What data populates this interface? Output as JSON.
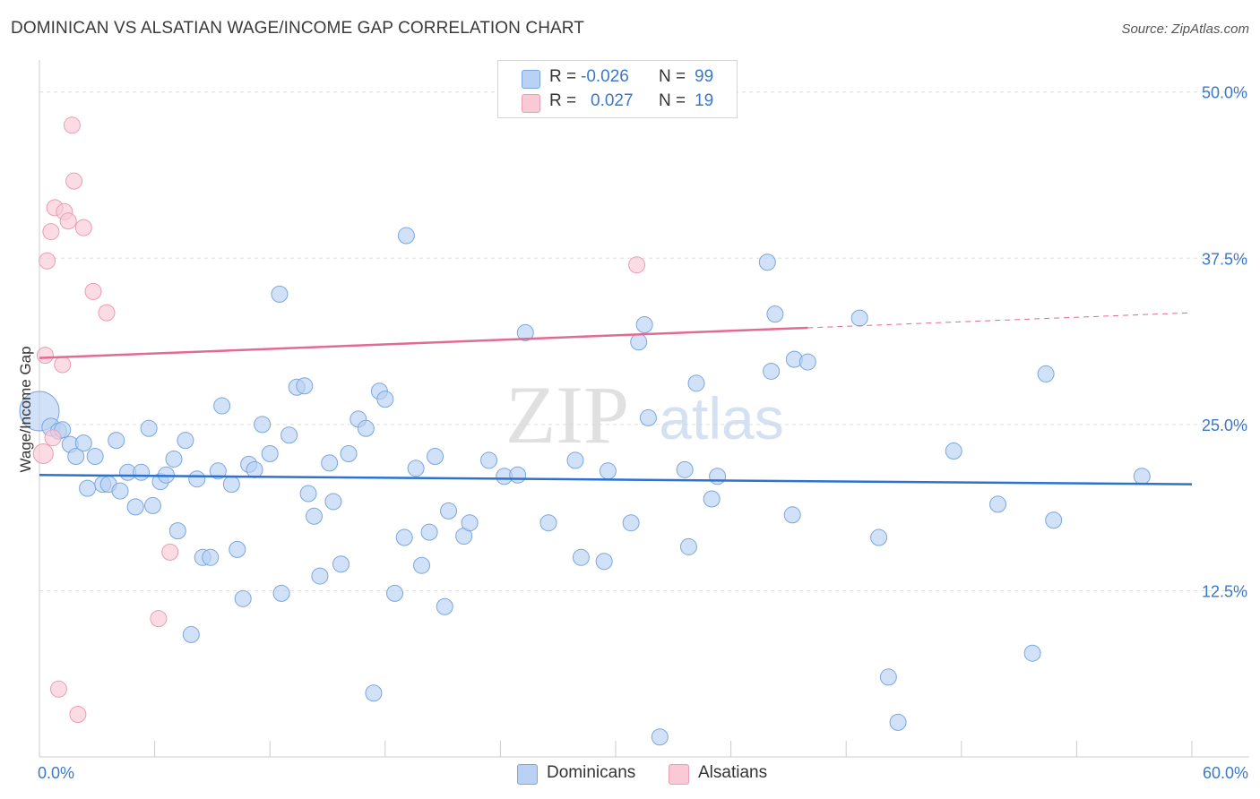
{
  "header": {
    "title": "DOMINICAN VS ALSATIAN WAGE/INCOME GAP CORRELATION CHART",
    "source": "Source: ZipAtlas.com"
  },
  "legend": {
    "rows": [
      {
        "r_label": "R =",
        "r_value": "-0.026",
        "n_label": "N =",
        "n_value": "99"
      },
      {
        "r_label": "R =",
        "r_value": "0.027",
        "n_label": "N =",
        "n_value": "19"
      }
    ],
    "series_names": [
      "Dominicans",
      "Alsatians"
    ]
  },
  "watermark": {
    "zip": "ZIP",
    "atlas": "atlas"
  },
  "colors": {
    "dominicans_fill": "#b9d1f3",
    "dominicans_stroke": "#7aa7e0",
    "dominicans_line": "#2d72d2",
    "alsatians_fill": "#f9c9d6",
    "alsatians_stroke": "#ec9cb4",
    "alsatians_line": "#e36a92",
    "tick_text": "#3b78c9",
    "grid": "#dddddd"
  },
  "chart_data": {
    "type": "scatter",
    "title": "DOMINICAN VS ALSATIAN WAGE/INCOME GAP CORRELATION CHART",
    "xlabel": "",
    "ylabel": "Wage/Income Gap",
    "xlim": [
      0,
      60
    ],
    "ylim": [
      0,
      52
    ],
    "x_tick_labels": [
      "0.0%",
      "60.0%"
    ],
    "y_ticks": [
      12.5,
      25.0,
      37.5,
      50.0
    ],
    "y_tick_labels": [
      "12.5%",
      "25.0%",
      "37.5%",
      "50.0%"
    ],
    "series": [
      {
        "name": "Dominicans",
        "r": -0.026,
        "n": 99,
        "trend": {
          "x": [
            0,
            60
          ],
          "y": [
            21.2,
            20.5
          ],
          "dashed_from": null
        },
        "points": [
          [
            0.0,
            26.0,
            22
          ],
          [
            0.6,
            24.8,
            10
          ],
          [
            1.0,
            24.5,
            9
          ],
          [
            1.2,
            24.6,
            9
          ],
          [
            1.6,
            23.5,
            9
          ],
          [
            1.9,
            22.6,
            9
          ],
          [
            2.3,
            23.6,
            9
          ],
          [
            2.5,
            20.2,
            9
          ],
          [
            2.9,
            22.6,
            9
          ],
          [
            3.3,
            20.5,
            9
          ],
          [
            3.6,
            20.5,
            9
          ],
          [
            4.0,
            23.8,
            9
          ],
          [
            4.2,
            20.0,
            9
          ],
          [
            4.6,
            21.4,
            9
          ],
          [
            5.0,
            18.8,
            9
          ],
          [
            5.3,
            21.4,
            9
          ],
          [
            5.7,
            24.7,
            9
          ],
          [
            5.9,
            18.9,
            9
          ],
          [
            6.3,
            20.7,
            9
          ],
          [
            6.6,
            21.2,
            9
          ],
          [
            7.0,
            22.4,
            9
          ],
          [
            7.2,
            17.0,
            9
          ],
          [
            7.6,
            23.8,
            9
          ],
          [
            7.9,
            9.2,
            9
          ],
          [
            8.2,
            20.9,
            9
          ],
          [
            8.5,
            15.0,
            9
          ],
          [
            8.9,
            15.0,
            9
          ],
          [
            9.3,
            21.5,
            9
          ],
          [
            9.5,
            26.4,
            9
          ],
          [
            10.0,
            20.5,
            9
          ],
          [
            10.3,
            15.6,
            9
          ],
          [
            10.6,
            11.9,
            9
          ],
          [
            10.9,
            22.0,
            9
          ],
          [
            11.2,
            21.6,
            9
          ],
          [
            11.6,
            25.0,
            9
          ],
          [
            12.0,
            22.8,
            9
          ],
          [
            12.5,
            34.8,
            9
          ],
          [
            12.6,
            12.3,
            9
          ],
          [
            13.0,
            24.2,
            9
          ],
          [
            13.4,
            27.8,
            9
          ],
          [
            13.8,
            27.9,
            9
          ],
          [
            14.0,
            19.8,
            9
          ],
          [
            14.3,
            18.1,
            9
          ],
          [
            14.6,
            13.6,
            9
          ],
          [
            15.1,
            22.1,
            9
          ],
          [
            15.3,
            19.2,
            9
          ],
          [
            15.7,
            14.5,
            9
          ],
          [
            16.1,
            22.8,
            9
          ],
          [
            16.6,
            25.4,
            9
          ],
          [
            17.0,
            24.7,
            9
          ],
          [
            17.4,
            4.8,
            9
          ],
          [
            17.7,
            27.5,
            9
          ],
          [
            18.0,
            26.9,
            9
          ],
          [
            18.5,
            12.3,
            9
          ],
          [
            19.0,
            16.5,
            9
          ],
          [
            19.1,
            39.2,
            9
          ],
          [
            19.6,
            21.7,
            9
          ],
          [
            19.9,
            14.4,
            9
          ],
          [
            20.3,
            16.9,
            9
          ],
          [
            20.6,
            22.6,
            9
          ],
          [
            21.1,
            11.3,
            9
          ],
          [
            21.3,
            18.5,
            9
          ],
          [
            22.1,
            16.6,
            9
          ],
          [
            22.4,
            17.6,
            9
          ],
          [
            23.4,
            22.3,
            9
          ],
          [
            24.2,
            21.1,
            9
          ],
          [
            24.9,
            21.2,
            9
          ],
          [
            25.3,
            31.9,
            9
          ],
          [
            26.5,
            17.6,
            9
          ],
          [
            27.9,
            22.3,
            9
          ],
          [
            28.2,
            15.0,
            9
          ],
          [
            29.4,
            14.7,
            9
          ],
          [
            29.6,
            21.5,
            9
          ],
          [
            30.8,
            17.6,
            9
          ],
          [
            31.2,
            31.2,
            9
          ],
          [
            31.5,
            32.5,
            9
          ],
          [
            31.7,
            25.5,
            9
          ],
          [
            32.3,
            1.5,
            9
          ],
          [
            33.6,
            21.6,
            9
          ],
          [
            33.8,
            15.8,
            9
          ],
          [
            34.2,
            28.1,
            9
          ],
          [
            35.0,
            19.4,
            9
          ],
          [
            35.3,
            21.1,
            9
          ],
          [
            37.9,
            37.2,
            9
          ],
          [
            38.1,
            29.0,
            9
          ],
          [
            38.3,
            33.3,
            9
          ],
          [
            39.2,
            18.2,
            9
          ],
          [
            39.3,
            29.9,
            9
          ],
          [
            40.0,
            29.7,
            9
          ],
          [
            42.7,
            33.0,
            9
          ],
          [
            43.7,
            16.5,
            9
          ],
          [
            44.2,
            6.0,
            9
          ],
          [
            44.7,
            2.6,
            9
          ],
          [
            47.6,
            23.0,
            9
          ],
          [
            49.9,
            19.0,
            9
          ],
          [
            51.7,
            7.8,
            9
          ],
          [
            52.4,
            28.8,
            9
          ],
          [
            52.8,
            17.8,
            9
          ],
          [
            57.4,
            21.1,
            9
          ]
        ]
      },
      {
        "name": "Alsatians",
        "r": 0.027,
        "n": 19,
        "trend": {
          "x": [
            0,
            60
          ],
          "y": [
            30.0,
            33.4
          ],
          "dashed_from": 40
        },
        "points": [
          [
            0.2,
            22.8,
            11
          ],
          [
            0.3,
            30.2,
            9
          ],
          [
            0.4,
            37.3,
            9
          ],
          [
            0.6,
            39.5,
            9
          ],
          [
            0.7,
            24.0,
            9
          ],
          [
            0.8,
            41.3,
            9
          ],
          [
            1.0,
            5.1,
            9
          ],
          [
            1.2,
            29.5,
            9
          ],
          [
            1.3,
            41.0,
            9
          ],
          [
            1.5,
            40.3,
            9
          ],
          [
            1.7,
            47.5,
            9
          ],
          [
            1.8,
            43.3,
            9
          ],
          [
            2.0,
            3.2,
            9
          ],
          [
            2.3,
            39.8,
            9
          ],
          [
            2.8,
            35.0,
            9
          ],
          [
            3.5,
            33.4,
            9
          ],
          [
            6.2,
            10.4,
            9
          ],
          [
            6.8,
            15.4,
            9
          ],
          [
            31.1,
            37.0,
            9
          ]
        ]
      }
    ]
  }
}
